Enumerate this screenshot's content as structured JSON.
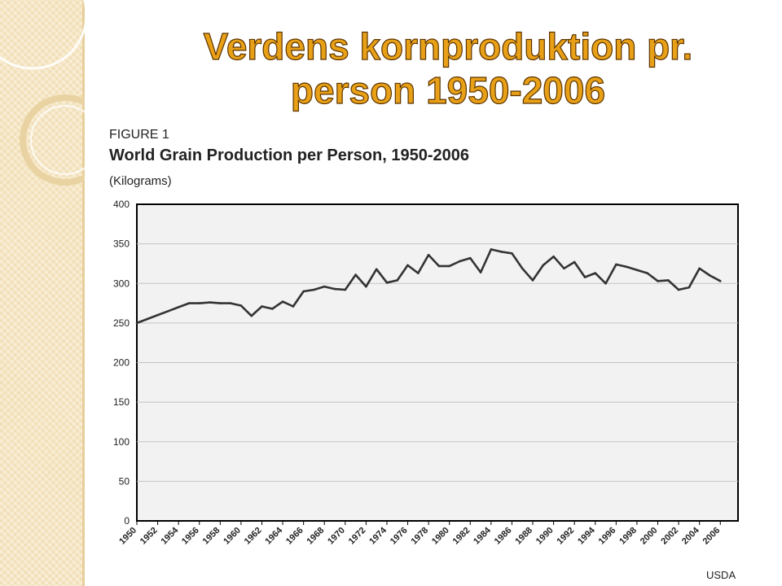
{
  "slide": {
    "title_line1": "Verdens kornproduktion pr.",
    "title_line2": "person 1950-2006"
  },
  "figure": {
    "label": "FIGURE 1",
    "title": "World Grain Production per Person, 1950-2006",
    "units": "(Kilograms)",
    "source": "USDA"
  },
  "colors": {
    "title_fill": "#e8a017",
    "title_outline": "#5c3300",
    "panel": "#f6e6c4",
    "plot_background": "#f2f2f2",
    "line": "#333333"
  },
  "chart_data": {
    "type": "line",
    "title": "World Grain Production per Person, 1950-2006",
    "ylabel": "(Kilograms)",
    "xlabel": "",
    "ylim": [
      0,
      400
    ],
    "yticks": [
      0,
      50,
      100,
      150,
      200,
      250,
      300,
      350,
      400
    ],
    "xticks": [
      1950,
      1952,
      1954,
      1956,
      1958,
      1960,
      1962,
      1964,
      1966,
      1968,
      1970,
      1972,
      1974,
      1976,
      1978,
      1980,
      1982,
      1984,
      1986,
      1988,
      1990,
      1992,
      1994,
      1996,
      1998,
      2000,
      2002,
      2004,
      2006
    ],
    "grid": true,
    "series": [
      {
        "x": [
          1950,
          1951,
          1952,
          1953,
          1954,
          1955,
          1956,
          1957,
          1958,
          1959,
          1960,
          1961,
          1962,
          1963,
          1964,
          1965,
          1966,
          1967,
          1968,
          1969,
          1970,
          1971,
          1972,
          1973,
          1974,
          1975,
          1976,
          1977,
          1978,
          1979,
          1980,
          1981,
          1982,
          1983,
          1984,
          1985,
          1986,
          1987,
          1988,
          1989,
          1990,
          1991,
          1992,
          1993,
          1994,
          1995,
          1996,
          1997,
          1998,
          1999,
          2000,
          2001,
          2002,
          2003,
          2004,
          2005,
          2006
        ],
        "y": [
          250,
          255,
          260,
          265,
          270,
          275,
          275,
          276,
          275,
          275,
          272,
          259,
          271,
          268,
          277,
          271,
          290,
          292,
          296,
          293,
          292,
          311,
          296,
          318,
          301,
          304,
          323,
          313,
          336,
          322,
          322,
          328,
          332,
          314,
          343,
          340,
          338,
          319,
          304,
          323,
          334,
          319,
          327,
          308,
          313,
          300,
          324,
          321,
          317,
          313,
          303,
          304,
          292,
          295,
          319,
          310,
          303
        ]
      }
    ]
  }
}
